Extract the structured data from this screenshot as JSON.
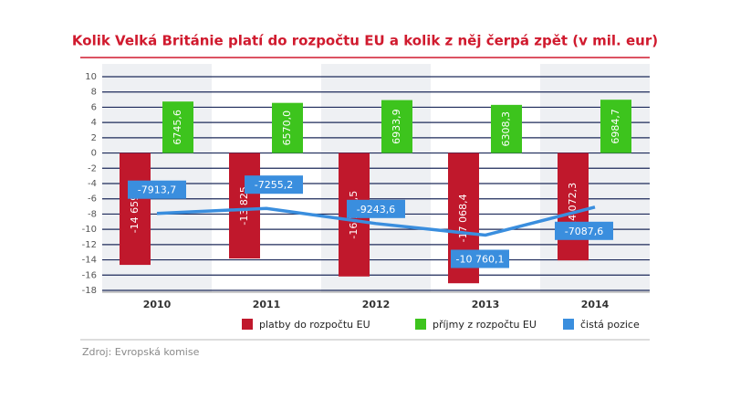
{
  "chart_data": {
    "type": "bar",
    "title": "Kolik Velká Británie platí do rozpočtu EU a kolik z něj čerpá zpět (v mil. eur)",
    "categories": [
      "2010",
      "2011",
      "2012",
      "2013",
      "2014"
    ],
    "series": [
      {
        "name": "platby do rozpočtu EU",
        "color": "#c0182c",
        "type": "bar",
        "values": [
          -14.6594,
          -13.825,
          -16.1775,
          -17.0684,
          -14.0723
        ],
        "value_labels": [
          "-14 659,4",
          "-13 825",
          "-16 177,5",
          "-17 068,4",
          "-14 072,3"
        ]
      },
      {
        "name": "příjmy z rozpočtu EU",
        "color": "#3dc41d",
        "type": "bar",
        "values": [
          6.7456,
          6.57,
          6.9339,
          6.3083,
          6.9847
        ],
        "value_labels": [
          "6745,6",
          "6570,0",
          "6933,9",
          "6308,3",
          "6984,7"
        ]
      },
      {
        "name": "čistá pozice",
        "color": "#3a8ede",
        "type": "line",
        "values": [
          -7.9137,
          -7.2552,
          -9.2436,
          -10.7601,
          -7.0876
        ],
        "value_labels": [
          "-7913,7",
          "-7255,2",
          "-9243,6",
          "-10 760,1",
          "-7087,6"
        ]
      }
    ],
    "ylim": [
      -18,
      10
    ],
    "yticks": [
      -18,
      -16,
      -14,
      -12,
      -10,
      -8,
      -6,
      -4,
      -2,
      0,
      2,
      4,
      6,
      8,
      10
    ],
    "grid": true,
    "source": "Zdroj: Evropská komise"
  }
}
